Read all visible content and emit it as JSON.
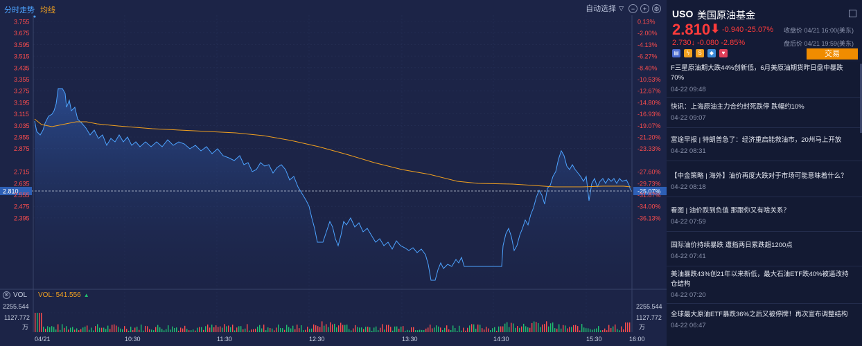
{
  "tabs": {
    "intraday": "分时走势",
    "average": "均线"
  },
  "toolbar": {
    "auto_select": "自动选择"
  },
  "price_axis": {
    "left": [
      "3.755",
      "3.675",
      "3.595",
      "3.515",
      "3.435",
      "3.355",
      "3.275",
      "3.195",
      "3.115",
      "3.035",
      "2.955",
      "2.875",
      "2.810",
      "2.715",
      "2.635",
      "2.555",
      "2.475",
      "2.395"
    ],
    "right": [
      "0.13%",
      "-2.00%",
      "-4.13%",
      "-6.27%",
      "-8.40%",
      "-10.53%",
      "-12.67%",
      "-14.80%",
      "-16.93%",
      "-19.07%",
      "-21.20%",
      "-23.33%",
      "-25.07%",
      "-27.60%",
      "-29.73%",
      "-31.87%",
      "-34.00%",
      "-36.13%"
    ]
  },
  "volume": {
    "label": "VOL",
    "value_label": "VOL: 541.556",
    "axis": [
      "2255.544",
      "1127.772",
      "万"
    ]
  },
  "time_axis": [
    "04/21",
    "10:30",
    "11:30",
    "12:30",
    "13:30",
    "14:30",
    "15:30",
    "16:00"
  ],
  "quote": {
    "symbol": "USO",
    "name": "美国原油基金",
    "price": "2.810",
    "arrow": "⬇",
    "change": "-0.940",
    "change_pct": "-25.07%",
    "close_label": "收盘价 04/21 16:00(美东)",
    "after_hours": "2.730↓  -0.080  -2.85%",
    "after_hours_label": "盘后价 04/21 19:59(美东)",
    "trade_label": "交易",
    "bell": "🔔"
  },
  "news": [
    {
      "title": "F三星原油期大跌44%创新低，6月美原油期货昨日盘中暴跌70%",
      "time": "04-22 09:48"
    },
    {
      "title": "快讯：上海原油主力合约封死跌停 跌幅约10%",
      "time": "04-22 09:07"
    },
    {
      "title": "富途早报 | 特朗普急了：经济重启能救油市，20州马上开放",
      "time": "04-22 08:31"
    },
    {
      "title": "【中金策略 | 海外】油价再度大跌对于市场可能意味着什么？",
      "time": "04-22 08:18"
    },
    {
      "title": "看图 | 油价跌到负值 那跟你又有啥关系？",
      "time": "04-22 07:59"
    },
    {
      "title": "国际油价持续暴跌 遭指两日累跌超1200点",
      "time": "04-22 07:41"
    },
    {
      "title": "美油暴跌43%创21年以来新低，最大石油ETF跌40%被逼改持仓结构",
      "time": "04-22 07:20"
    },
    {
      "title": "全球最大原油ETF暴跌36%之后又被停牌！再次宣布调整结构",
      "time": "04-22 06:47"
    }
  ],
  "colors": {
    "up": "#ff3b3b",
    "price_line": "#4da3ff",
    "avg_line": "#f0a020",
    "accent": "#f08c00"
  }
}
